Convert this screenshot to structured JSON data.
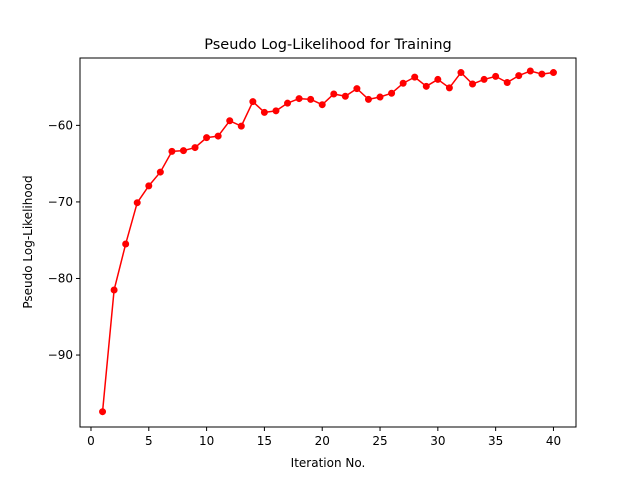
{
  "chart_data": {
    "type": "line",
    "title": "Pseudo Log-Likelihood for Training",
    "xlabel": "Iteration No.",
    "ylabel": "Pseudo Log-Likelihood",
    "xlim": [
      -0.95,
      41.95
    ],
    "ylim": [
      -99.4,
      -51.2
    ],
    "xticks": [
      0,
      5,
      10,
      15,
      20,
      25,
      30,
      35,
      40
    ],
    "yticks": [
      -90,
      -80,
      -70,
      -60
    ],
    "ytick_labels": [
      "−90",
      "−80",
      "−70",
      "−60"
    ],
    "grid": false,
    "legend": "none",
    "series": [
      {
        "color": "#ff0000",
        "marker": "circle",
        "x": [
          1,
          2,
          3,
          4,
          5,
          6,
          7,
          8,
          9,
          10,
          11,
          12,
          13,
          14,
          15,
          16,
          17,
          18,
          19,
          20,
          21,
          22,
          23,
          24,
          25,
          26,
          27,
          28,
          29,
          30,
          31,
          32,
          33,
          34,
          35,
          36,
          37,
          38,
          39,
          40
        ],
        "y": [
          -97.4,
          -81.5,
          -75.5,
          -70.1,
          -67.9,
          -66.1,
          -63.4,
          -63.3,
          -62.9,
          -61.6,
          -61.4,
          -59.4,
          -60.1,
          -56.9,
          -58.3,
          -58.1,
          -57.1,
          -56.5,
          -56.6,
          -57.3,
          -55.9,
          -56.2,
          -55.2,
          -56.6,
          -56.3,
          -55.8,
          -54.5,
          -53.7,
          -54.9,
          -54.0,
          -55.1,
          -53.1,
          -54.6,
          -54.0,
          -53.6,
          -54.4,
          -53.5,
          -52.9,
          -53.3,
          -53.1
        ]
      }
    ]
  }
}
